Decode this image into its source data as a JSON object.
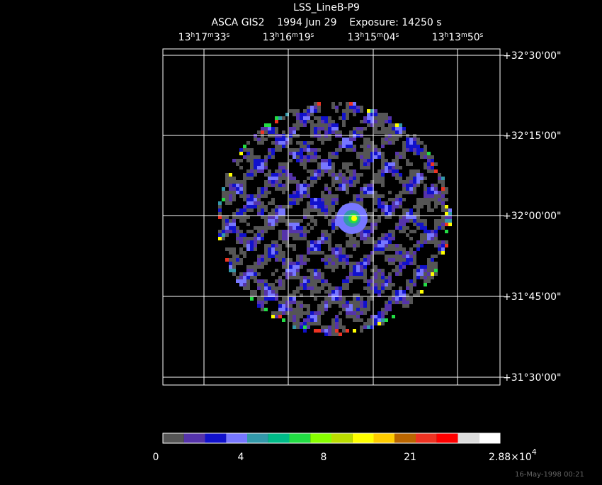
{
  "header": {
    "title": "LSS_LineB-P9",
    "subtitle": "ASCA GIS2    1994 Jun 29    Exposure: 14250 s"
  },
  "ra_labels": [
    [
      "13",
      "h",
      "17",
      "m",
      "33",
      "s"
    ],
    [
      "13",
      "h",
      "16",
      "m",
      "19",
      "s"
    ],
    [
      "13",
      "h",
      "15",
      "m",
      "04",
      "s"
    ],
    [
      "13",
      "h",
      "13",
      "m",
      "50",
      "s"
    ]
  ],
  "dec_labels": [
    "+32°30'00\"",
    "+32°15'00\"",
    "+32°00'00\"",
    "+31°45'00\"",
    "+31°30'00\""
  ],
  "colorbar": {
    "colors": [
      "#555555",
      "#5533aa",
      "#1111cc",
      "#7777ff",
      "#3399aa",
      "#00bb88",
      "#22dd44",
      "#88ff00",
      "#bbdd00",
      "#ffff00",
      "#ffcc00",
      "#bb6600",
      "#ee3322",
      "#ff0000",
      "#dddddd",
      "#ffffff"
    ],
    "labels": [
      "0",
      "4",
      "8",
      "21"
    ],
    "max_label": [
      "2.88×10",
      "4"
    ]
  },
  "footer": {
    "timestamp": "16-May-1998 00:21"
  }
}
